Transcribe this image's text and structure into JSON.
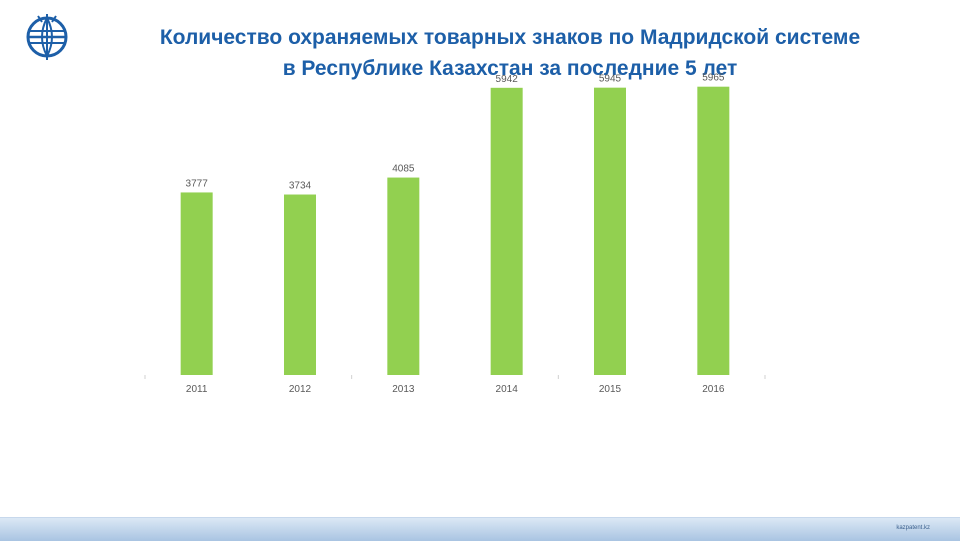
{
  "title": {
    "line1": "Количество охраняемых товарных знаков  по Мадридской системе",
    "line2": "в Республике Казахстан за последние 5 лет"
  },
  "footer": {
    "text": "kazpatent.kz"
  },
  "colors": {
    "bar": "#92d050",
    "title": "#1d5fa8",
    "labels": "#595959"
  },
  "chart_data": {
    "type": "bar",
    "title": "",
    "xlabel": "",
    "ylabel": "",
    "categories": [
      "2011",
      "2012",
      "2013",
      "2014",
      "2015",
      "2016"
    ],
    "values": [
      3777,
      3734,
      4085,
      5942,
      5945,
      5965
    ],
    "ylim": [
      0,
      6000
    ],
    "grid": false,
    "legend": "none"
  }
}
